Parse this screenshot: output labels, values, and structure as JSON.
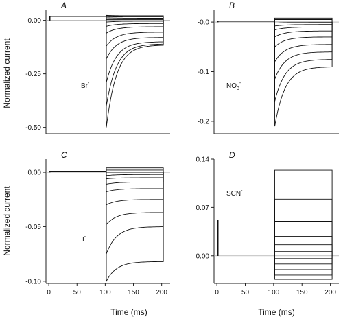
{
  "figure": {
    "y_axis_label": "Normalized current",
    "x_axis_label": "Time (ms)"
  },
  "chart_data": [
    {
      "type": "line",
      "panel": "A",
      "ion": "Br",
      "ion_sup": "-",
      "xlim": [
        -5,
        215
      ],
      "ylim": [
        -0.53,
        0.05
      ],
      "yticks": [
        0.0,
        -0.25,
        -0.5
      ],
      "ytick_labels": [
        "0.00",
        "-0.25",
        "-0.50"
      ],
      "xticks": [],
      "xtick_labels": [],
      "pulse_start": 2,
      "step_time": 102,
      "step_end": 203,
      "zero_line": true,
      "traces": [
        {
          "pre": 0.018,
          "onset": 0.023,
          "late": 0.021
        },
        {
          "pre": 0.018,
          "onset": 0.017,
          "late": 0.016
        },
        {
          "pre": 0.018,
          "onset": 0.012,
          "late": 0.01
        },
        {
          "pre": 0.018,
          "onset": 0.004,
          "late": 0.004
        },
        {
          "pre": 0.018,
          "onset": -0.008,
          "late": -0.004
        },
        {
          "pre": 0.018,
          "onset": -0.028,
          "late": -0.015
        },
        {
          "pre": 0.018,
          "onset": -0.06,
          "late": -0.03
        },
        {
          "pre": 0.018,
          "onset": -0.12,
          "late": -0.055
        },
        {
          "pre": 0.018,
          "onset": -0.18,
          "late": -0.08
        },
        {
          "pre": 0.018,
          "onset": -0.29,
          "late": -0.1
        },
        {
          "pre": 0.018,
          "onset": -0.4,
          "late": -0.11
        },
        {
          "pre": 0.018,
          "onset": -0.5,
          "late": -0.115
        }
      ]
    },
    {
      "type": "line",
      "panel": "B",
      "ion": "NO",
      "ion_sub": "3",
      "ion_sup": "-",
      "xlim": [
        -5,
        215
      ],
      "ylim": [
        -0.225,
        0.025
      ],
      "yticks": [
        0.0,
        -0.1,
        -0.2
      ],
      "ytick_labels": [
        "-0.0",
        "-0.1",
        "-0.2"
      ],
      "xticks": [],
      "xtick_labels": [],
      "pulse_start": 2,
      "step_time": 102,
      "step_end": 203,
      "zero_line": true,
      "traces": [
        {
          "pre": 0.002,
          "onset": 0.008,
          "late": 0.008
        },
        {
          "pre": 0.002,
          "onset": 0.005,
          "late": 0.005
        },
        {
          "pre": 0.002,
          "onset": 0.002,
          "late": 0.002
        },
        {
          "pre": 0.002,
          "onset": -0.002,
          "late": -0.001
        },
        {
          "pre": 0.002,
          "onset": -0.008,
          "late": -0.005
        },
        {
          "pre": 0.002,
          "onset": -0.016,
          "late": -0.01
        },
        {
          "pre": 0.002,
          "onset": -0.03,
          "late": -0.018
        },
        {
          "pre": 0.002,
          "onset": -0.05,
          "late": -0.03
        },
        {
          "pre": 0.002,
          "onset": -0.08,
          "late": -0.045
        },
        {
          "pre": 0.002,
          "onset": -0.115,
          "late": -0.06
        },
        {
          "pre": 0.002,
          "onset": -0.16,
          "late": -0.075
        },
        {
          "pre": 0.002,
          "onset": -0.21,
          "late": -0.09
        }
      ]
    },
    {
      "type": "line",
      "panel": "C",
      "ion": "I",
      "ion_sup": "-",
      "xlim": [
        -5,
        215
      ],
      "ylim": [
        -0.102,
        0.012
      ],
      "yticks": [
        0.0,
        -0.05,
        -0.1
      ],
      "ytick_labels": [
        "0.00",
        "-0.05",
        "-0.10"
      ],
      "xticks": [
        0,
        50,
        100,
        150,
        200
      ],
      "xtick_labels": [
        "0",
        "50",
        "100",
        "150",
        "200"
      ],
      "pulse_start": 2,
      "step_time": 102,
      "step_end": 203,
      "zero_line": true,
      "traces": [
        {
          "pre": 0.001,
          "onset": 0.004,
          "late": 0.004
        },
        {
          "pre": 0.001,
          "onset": 0.002,
          "late": 0.002
        },
        {
          "pre": 0.001,
          "onset": 0.0,
          "late": 0.0
        },
        {
          "pre": 0.001,
          "onset": -0.003,
          "late": -0.002
        },
        {
          "pre": 0.001,
          "onset": -0.006,
          "late": -0.005
        },
        {
          "pre": 0.001,
          "onset": -0.011,
          "late": -0.009
        },
        {
          "pre": 0.001,
          "onset": -0.018,
          "late": -0.015
        },
        {
          "pre": 0.001,
          "onset": -0.03,
          "late": -0.025
        },
        {
          "pre": 0.001,
          "onset": -0.048,
          "late": -0.037
        },
        {
          "pre": 0.001,
          "onset": -0.075,
          "late": -0.05
        },
        {
          "pre": 0.001,
          "onset": -0.1,
          "late": -0.082
        }
      ]
    },
    {
      "type": "line",
      "panel": "D",
      "ion": "SCN",
      "ion_sup": "-",
      "xlim": [
        -5,
        215
      ],
      "ylim": [
        -0.04,
        0.14
      ],
      "yticks": [
        0.14,
        0.07,
        0.0
      ],
      "ytick_labels": [
        "0.14",
        "0.07",
        "0.00"
      ],
      "xticks": [
        0,
        50,
        100,
        150,
        200
      ],
      "xtick_labels": [
        "0",
        "50",
        "100",
        "150",
        "200"
      ],
      "pulse_start": 2,
      "step_time": 102,
      "step_end": 203,
      "zero_line": true,
      "traces": [
        {
          "pre": 0.052,
          "onset": 0.124,
          "late": 0.124
        },
        {
          "pre": 0.052,
          "onset": 0.082,
          "late": 0.082
        },
        {
          "pre": 0.052,
          "onset": 0.05,
          "late": 0.05
        },
        {
          "pre": 0.052,
          "onset": 0.028,
          "late": 0.028
        },
        {
          "pre": 0.052,
          "onset": 0.016,
          "late": 0.016
        },
        {
          "pre": 0.052,
          "onset": 0.006,
          "late": 0.006
        },
        {
          "pre": 0.052,
          "onset": -0.004,
          "late": -0.004
        },
        {
          "pre": 0.052,
          "onset": -0.012,
          "late": -0.012
        },
        {
          "pre": 0.052,
          "onset": -0.02,
          "late": -0.02
        },
        {
          "pre": 0.052,
          "onset": -0.028,
          "late": -0.028
        },
        {
          "pre": 0.052,
          "onset": -0.034,
          "late": -0.034
        }
      ]
    }
  ]
}
